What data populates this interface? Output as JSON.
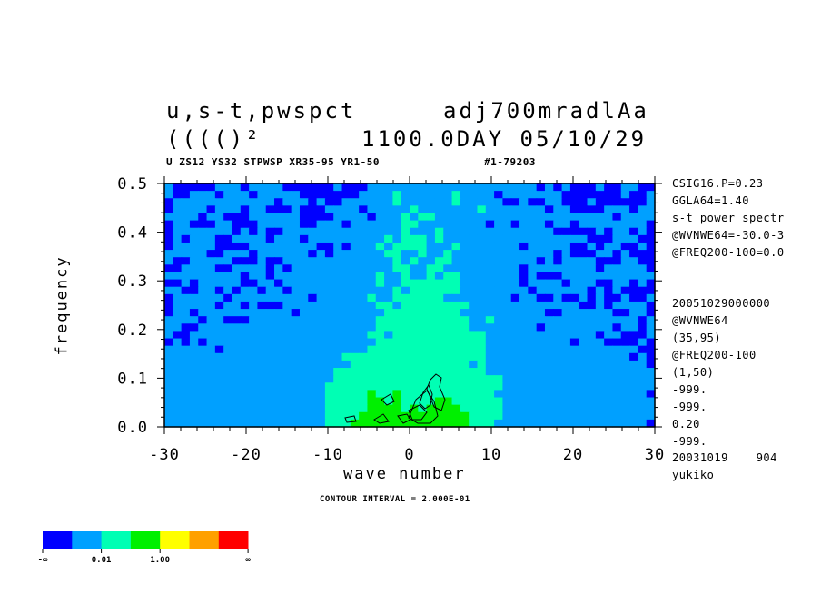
{
  "header": {
    "line1_left": "u,s-t,pwspct",
    "line1_right": "adj700mradlAa",
    "line2_left": "(((()²",
    "line2_right": "1100.0DAY 05/10/29",
    "subtitle_left": "U ZS12 YS32 STPWSP XR35-95 YR1-50",
    "subtitle_right": "#1-79203"
  },
  "side_info": [
    "CSIG16.P=0.23",
    "GGLA64=1.40",
    "s-t power spectr",
    "@WVNWE64=-30.0-3",
    "@FREQ200-100=0.0",
    "",
    "",
    "20051029000000",
    "@WVNWE64",
    "(35,95)",
    "@FREQ200-100",
    "(1,50)",
    "-999.",
    "-999.",
    "0.20",
    "-999.",
    "20031019    904",
    "yukiko"
  ],
  "contour_note": "CONTOUR INTERVAL = 2.000E-01",
  "colorbar": {
    "colors": [
      "#0000ff",
      "#00a0ff",
      "#00ffb4",
      "#00f000",
      "#ffff00",
      "#ffa000",
      "#ff0000"
    ],
    "labels": [
      "-∞",
      "0.01",
      "1.00",
      "∞"
    ]
  },
  "chart_data": {
    "type": "heatmap",
    "title": "u,s-t,pwspct",
    "xlabel": "wave number",
    "ylabel": "frequency",
    "xlim": [
      -30,
      30
    ],
    "ylim": [
      0.0,
      0.5
    ],
    "xticks": [
      -30,
      -20,
      -10,
      0,
      10,
      20,
      30
    ],
    "xtick_labels": [
      "-30",
      "-20",
      "-10",
      "0",
      "10",
      "20",
      "30"
    ],
    "yticks": [
      0.0,
      0.1,
      0.2,
      0.3,
      0.4,
      0.5
    ],
    "ytick_labels": [
      "0.0",
      "0.1",
      "0.2",
      "0.3",
      "0.4",
      "0.5"
    ],
    "level_colors": {
      "1": "#0000ff",
      "2": "#00a0ff",
      "3": "#00ffb4",
      "4": "#00f000"
    },
    "grid_levels": [
      "2111112221222211111121112222222222222222222212121112112211",
      "2112221222122222111111122223222222322221222222211111112112",
      "1222222222222122212112222223222222322222112112211121111112",
      "1222212221221112111222212222232222222322222221221111222122",
      "2222122111222222111122221222323322222222222222222222212222",
      "1221112211122222112221222222332222222212212221221222222221",
      "1222222212121122222222222222322232222222222222111112122121",
      "1212221122221222122222222232333232222222222222222211122211",
      "1222221111222222221121222323333222322222221222221121221121",
      "2222211222122222212122222233223223222222222222121112212111",
      "2112222211121122222222222223232233222222222212122221112211",
      "1122221122221212222222222223322332222222221222222221222221",
      "2222222221221222222222222322322323322222221211122222222222",
      "1121222221122122222222222322333333322222221222212221122121",
      "2211221212212212222222222223233333322222222122222212121111",
      "1222222122222222212222223223333332222222212211211212112112",
      "1222221221211122222222222332333333332222222222222112122221",
      "1221222222222221222222222233333333322222222221122222211221",
      "2222122111222222222222222333333333332232222222222222222212",
      "2211222222222222222222222333333333332222222212222222212212",
      "2112222222222222222222223323333333333322222222222221221112",
      "1212122222222222222222222333333333333322222222221222111121",
      "2222221222222222222222223333333333333322222222222222222211",
      "2222222222222222222223333333333333333322222222222222222121",
      "2222222222222222222222333333333333332322222222222222222221",
      "2222222222222222222233333333333333333322222222222222222222",
      "2222222222222222222233333333333333333333222222222222222222",
      "2222222222222222222333333333333333333333222222222222222222",
      "2222222222222222222333334334333333333332222222222222222221",
      "2222222222222222222333334434333344333333222222222222222222",
      "2222222222222222222333334444343444433333222222222222222222",
      "2222222222222222222333344444444444443333222222222222222222",
      "2222222222222222222333444444444444443332222222222222222221"
    ]
  }
}
